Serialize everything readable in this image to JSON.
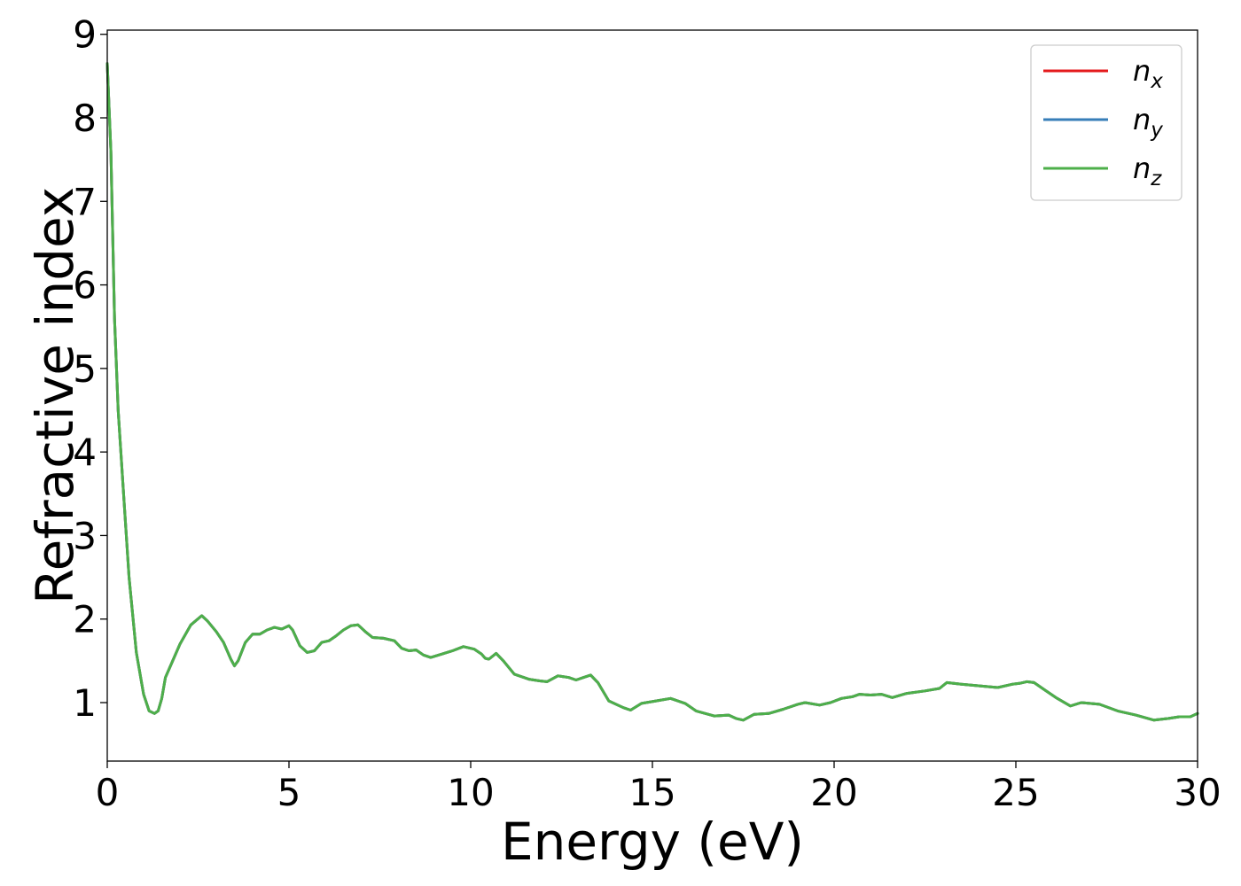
{
  "chart_data": {
    "type": "line",
    "title": "",
    "xlabel": "Energy (eV)",
    "ylabel": "Refractive index",
    "xlim": [
      0,
      30
    ],
    "ylim": [
      0.3,
      9.05
    ],
    "x_ticks": [
      0,
      5,
      10,
      15,
      20,
      25,
      30
    ],
    "y_ticks": [
      1,
      2,
      3,
      4,
      5,
      6,
      7,
      8,
      9
    ],
    "grid": false,
    "legend_placement": "top-right",
    "legend": [
      {
        "base": "n",
        "sub": "x",
        "color": "#e41a1c"
      },
      {
        "base": "n",
        "sub": "y",
        "color": "#377eb8"
      },
      {
        "base": "n",
        "sub": "z",
        "color": "#4daf4a"
      }
    ],
    "x": [
      0,
      0.1,
      0.2,
      0.3,
      0.45,
      0.6,
      0.8,
      1.0,
      1.15,
      1.3,
      1.4,
      1.5,
      1.6,
      1.8,
      2.0,
      2.3,
      2.6,
      2.75,
      3.0,
      3.2,
      3.4,
      3.5,
      3.6,
      3.8,
      4.0,
      4.2,
      4.4,
      4.6,
      4.8,
      5.0,
      5.1,
      5.3,
      5.5,
      5.7,
      5.9,
      6.1,
      6.3,
      6.5,
      6.7,
      6.9,
      7.1,
      7.3,
      7.6,
      7.9,
      8.1,
      8.3,
      8.5,
      8.7,
      8.9,
      9.2,
      9.5,
      9.8,
      10.1,
      10.3,
      10.4,
      10.5,
      10.7,
      10.9,
      11.2,
      11.6,
      11.9,
      12.1,
      12.4,
      12.7,
      12.9,
      13.1,
      13.3,
      13.5,
      13.8,
      14.2,
      14.4,
      14.7,
      15.1,
      15.5,
      15.9,
      16.2,
      16.7,
      17.1,
      17.3,
      17.5,
      17.8,
      18.2,
      18.6,
      19.0,
      19.2,
      19.6,
      19.9,
      20.2,
      20.5,
      20.7,
      21.0,
      21.3,
      21.6,
      22.0,
      22.5,
      22.9,
      23.1,
      23.5,
      24.0,
      24.5,
      24.9,
      25.1,
      25.3,
      25.5,
      25.8,
      26.1,
      26.5,
      26.8,
      27.3,
      27.8,
      28.3,
      28.8,
      29.2,
      29.5,
      29.8,
      30.0
    ],
    "series": [
      {
        "name": "n_x",
        "color": "#e41a1c",
        "values": [
          8.65,
          7.6,
          5.6,
          4.5,
          3.5,
          2.5,
          1.6,
          1.1,
          0.9,
          0.87,
          0.9,
          1.05,
          1.3,
          1.5,
          1.7,
          1.93,
          2.04,
          1.98,
          1.85,
          1.72,
          1.52,
          1.44,
          1.5,
          1.72,
          1.82,
          1.82,
          1.87,
          1.9,
          1.88,
          1.92,
          1.87,
          1.68,
          1.6,
          1.62,
          1.72,
          1.74,
          1.8,
          1.87,
          1.92,
          1.93,
          1.85,
          1.78,
          1.77,
          1.74,
          1.65,
          1.62,
          1.63,
          1.57,
          1.54,
          1.58,
          1.62,
          1.67,
          1.64,
          1.58,
          1.53,
          1.52,
          1.59,
          1.5,
          1.34,
          1.28,
          1.26,
          1.25,
          1.32,
          1.3,
          1.27,
          1.3,
          1.33,
          1.24,
          1.02,
          0.94,
          0.91,
          0.99,
          1.02,
          1.05,
          0.99,
          0.9,
          0.84,
          0.85,
          0.81,
          0.79,
          0.86,
          0.87,
          0.92,
          0.98,
          1.0,
          0.97,
          1.0,
          1.05,
          1.07,
          1.1,
          1.09,
          1.1,
          1.06,
          1.11,
          1.14,
          1.17,
          1.24,
          1.22,
          1.2,
          1.18,
          1.22,
          1.23,
          1.25,
          1.24,
          1.15,
          1.06,
          0.96,
          1.0,
          0.98,
          0.9,
          0.85,
          0.79,
          0.81,
          0.83,
          0.83,
          0.87
        ]
      },
      {
        "name": "n_y",
        "color": "#377eb8",
        "values": [
          8.65,
          7.6,
          5.6,
          4.5,
          3.5,
          2.5,
          1.6,
          1.1,
          0.9,
          0.87,
          0.9,
          1.05,
          1.3,
          1.5,
          1.7,
          1.93,
          2.04,
          1.98,
          1.85,
          1.72,
          1.52,
          1.44,
          1.5,
          1.72,
          1.82,
          1.82,
          1.87,
          1.9,
          1.88,
          1.92,
          1.87,
          1.68,
          1.6,
          1.62,
          1.72,
          1.74,
          1.8,
          1.87,
          1.92,
          1.93,
          1.85,
          1.78,
          1.77,
          1.74,
          1.65,
          1.62,
          1.63,
          1.57,
          1.54,
          1.58,
          1.62,
          1.67,
          1.64,
          1.58,
          1.53,
          1.52,
          1.59,
          1.5,
          1.34,
          1.28,
          1.26,
          1.25,
          1.32,
          1.3,
          1.27,
          1.3,
          1.33,
          1.24,
          1.02,
          0.94,
          0.91,
          0.99,
          1.02,
          1.05,
          0.99,
          0.9,
          0.84,
          0.85,
          0.81,
          0.79,
          0.86,
          0.87,
          0.92,
          0.98,
          1.0,
          0.97,
          1.0,
          1.05,
          1.07,
          1.1,
          1.09,
          1.1,
          1.06,
          1.11,
          1.14,
          1.17,
          1.24,
          1.22,
          1.2,
          1.18,
          1.22,
          1.23,
          1.25,
          1.24,
          1.15,
          1.06,
          0.96,
          1.0,
          0.98,
          0.9,
          0.85,
          0.79,
          0.81,
          0.83,
          0.83,
          0.87
        ]
      },
      {
        "name": "n_z",
        "color": "#4daf4a",
        "values": [
          8.65,
          7.6,
          5.6,
          4.5,
          3.5,
          2.5,
          1.6,
          1.1,
          0.9,
          0.87,
          0.9,
          1.05,
          1.3,
          1.5,
          1.7,
          1.93,
          2.04,
          1.98,
          1.85,
          1.72,
          1.52,
          1.44,
          1.5,
          1.72,
          1.82,
          1.82,
          1.87,
          1.9,
          1.88,
          1.92,
          1.87,
          1.68,
          1.6,
          1.62,
          1.72,
          1.74,
          1.8,
          1.87,
          1.92,
          1.93,
          1.85,
          1.78,
          1.77,
          1.74,
          1.65,
          1.62,
          1.63,
          1.57,
          1.54,
          1.58,
          1.62,
          1.67,
          1.64,
          1.58,
          1.53,
          1.52,
          1.59,
          1.5,
          1.34,
          1.28,
          1.26,
          1.25,
          1.32,
          1.3,
          1.27,
          1.3,
          1.33,
          1.24,
          1.02,
          0.94,
          0.91,
          0.99,
          1.02,
          1.05,
          0.99,
          0.9,
          0.84,
          0.85,
          0.81,
          0.79,
          0.86,
          0.87,
          0.92,
          0.98,
          1.0,
          0.97,
          1.0,
          1.05,
          1.07,
          1.1,
          1.09,
          1.1,
          1.06,
          1.11,
          1.14,
          1.17,
          1.24,
          1.22,
          1.2,
          1.18,
          1.22,
          1.23,
          1.25,
          1.24,
          1.15,
          1.06,
          0.96,
          1.0,
          0.98,
          0.9,
          0.85,
          0.79,
          0.81,
          0.83,
          0.83,
          0.87
        ]
      }
    ]
  }
}
